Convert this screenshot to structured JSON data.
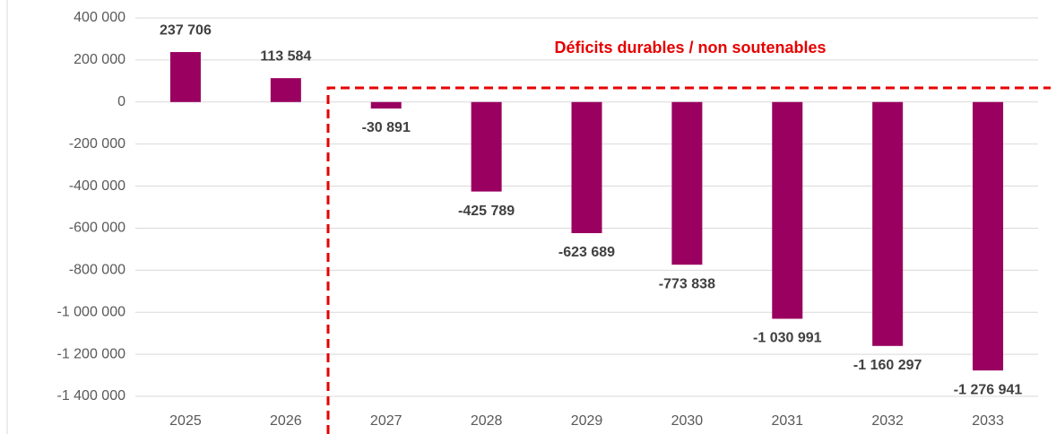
{
  "chart_data": {
    "type": "bar",
    "annotation": "Déficits durables / non soutenables",
    "categories": [
      "2025",
      "2026",
      "2027",
      "2028",
      "2029",
      "2030",
      "2031",
      "2032",
      "2033"
    ],
    "values": [
      237706,
      113584,
      -30891,
      -425789,
      -623689,
      -773838,
      -1030991,
      -1160297,
      -1276941
    ],
    "value_labels": [
      "237 706",
      "113 584",
      "-30 891",
      "-425 789",
      "-623 689",
      "-773 838",
      "-1 030 991",
      "-1 160 297",
      "-1 276 941"
    ],
    "color": "#990060",
    "ylim": [
      -1400000,
      400000
    ],
    "yticks": [
      {
        "value": -1400000,
        "label": "-1 400 000"
      },
      {
        "value": -1200000,
        "label": "-1 200 000"
      },
      {
        "value": -1000000,
        "label": "-1 000 000"
      },
      {
        "value": -800000,
        "label": "-800 000"
      },
      {
        "value": -600000,
        "label": "-600 000"
      },
      {
        "value": -400000,
        "label": "-400 000"
      },
      {
        "value": -200000,
        "label": "-200 000"
      },
      0,
      {
        "value": 200000,
        "label": "200 000"
      },
      {
        "value": 400000,
        "label": "400 000"
      }
    ],
    "grid": true
  }
}
